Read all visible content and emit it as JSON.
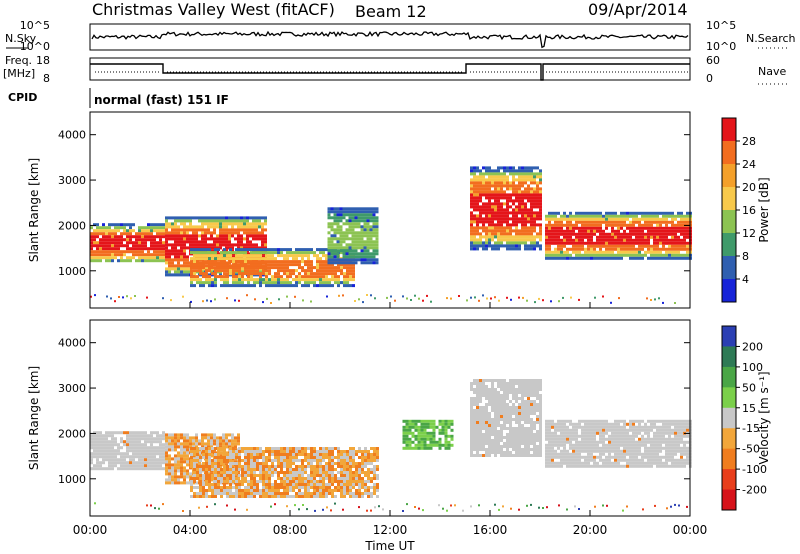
{
  "header": {
    "title": "Christmas Valley West (fitACF)",
    "beam": "Beam 12",
    "date": "09/Apr/2014"
  },
  "top_panel_labels": {
    "nsky": "N.Sky",
    "nsearch": "N.Search",
    "freq": "Freq.",
    "freq_unit": "[MHz]",
    "nave": "Nave",
    "cpid": "CPID",
    "cpid_value": "normal (fast) 151 IF",
    "noise_ticks": [
      "10^5",
      "10^0"
    ],
    "freq_ticks": [
      "18",
      "8"
    ],
    "nave_ticks": [
      "60",
      "0"
    ]
  },
  "chart_data": [
    {
      "type": "heatmap",
      "panel": "power",
      "ylabel": "Slant Range [km]",
      "ylim": [
        180,
        4500
      ],
      "yticks": [
        1000,
        2000,
        3000,
        4000
      ],
      "xlim": [
        0,
        24
      ],
      "colorbar": {
        "label": "Power [dB]",
        "ticks": [
          "28",
          "24",
          "20",
          "16",
          "12",
          "8",
          "4"
        ],
        "colors": [
          "#e4151a",
          "#f26d1f",
          "#f4a02a",
          "#f8c94b",
          "#8cc352",
          "#3f9a6a",
          "#2f5fb0",
          "#1724d8"
        ]
      },
      "bands": [
        {
          "hours": [
            0.0,
            3.0
          ],
          "range_km": [
            1200,
            2050
          ],
          "level": "high"
        },
        {
          "hours": [
            3.0,
            7.0
          ],
          "range_km": [
            900,
            2200
          ],
          "level": "high"
        },
        {
          "hours": [
            4.0,
            10.5
          ],
          "range_km": [
            650,
            1500
          ],
          "level": "mid"
        },
        {
          "hours": [
            9.5,
            11.5
          ],
          "range_km": [
            1200,
            2400
          ],
          "level": "low"
        },
        {
          "hours": [
            15.2,
            18.0
          ],
          "range_km": [
            1500,
            3300
          ],
          "level": "high"
        },
        {
          "hours": [
            18.2,
            24.0
          ],
          "range_km": [
            1300,
            2300
          ],
          "level": "high"
        }
      ]
    },
    {
      "type": "heatmap",
      "panel": "velocity",
      "ylabel": "Slant Range [km]",
      "ylim": [
        180,
        4500
      ],
      "yticks": [
        1000,
        2000,
        3000,
        4000
      ],
      "xlim": [
        0,
        24
      ],
      "xticks": [
        "00:00",
        "04:00",
        "08:00",
        "12:00",
        "16:00",
        "20:00",
        "00:00"
      ],
      "xlabel": "Time UT",
      "colorbar": {
        "label": "Velocity [m s⁻¹]",
        "ticks": [
          "200",
          "100",
          "50",
          "15",
          "-15",
          "-50",
          "-100",
          "-200"
        ],
        "colors": [
          "#2b3fb3",
          "#2e7a55",
          "#4aa646",
          "#7bd04a",
          "#c8c8c8",
          "#f2a63a",
          "#f07d1e",
          "#e83e1b",
          "#d6121a"
        ]
      },
      "bands": [
        {
          "hours": [
            0.0,
            3.0
          ],
          "range_km": [
            1200,
            2050
          ],
          "velocity": "near-zero"
        },
        {
          "hours": [
            3.0,
            6.0
          ],
          "range_km": [
            900,
            2000
          ],
          "velocity": "negative"
        },
        {
          "hours": [
            4.0,
            11.5
          ],
          "range_km": [
            600,
            1700
          ],
          "velocity": "negative"
        },
        {
          "hours": [
            12.5,
            14.5
          ],
          "range_km": [
            1700,
            2300
          ],
          "velocity": "positive"
        },
        {
          "hours": [
            15.2,
            18.0
          ],
          "range_km": [
            1500,
            3200
          ],
          "velocity": "near-zero"
        },
        {
          "hours": [
            18.2,
            24.0
          ],
          "range_km": [
            1300,
            2300
          ],
          "velocity": "near-zero"
        }
      ]
    }
  ]
}
